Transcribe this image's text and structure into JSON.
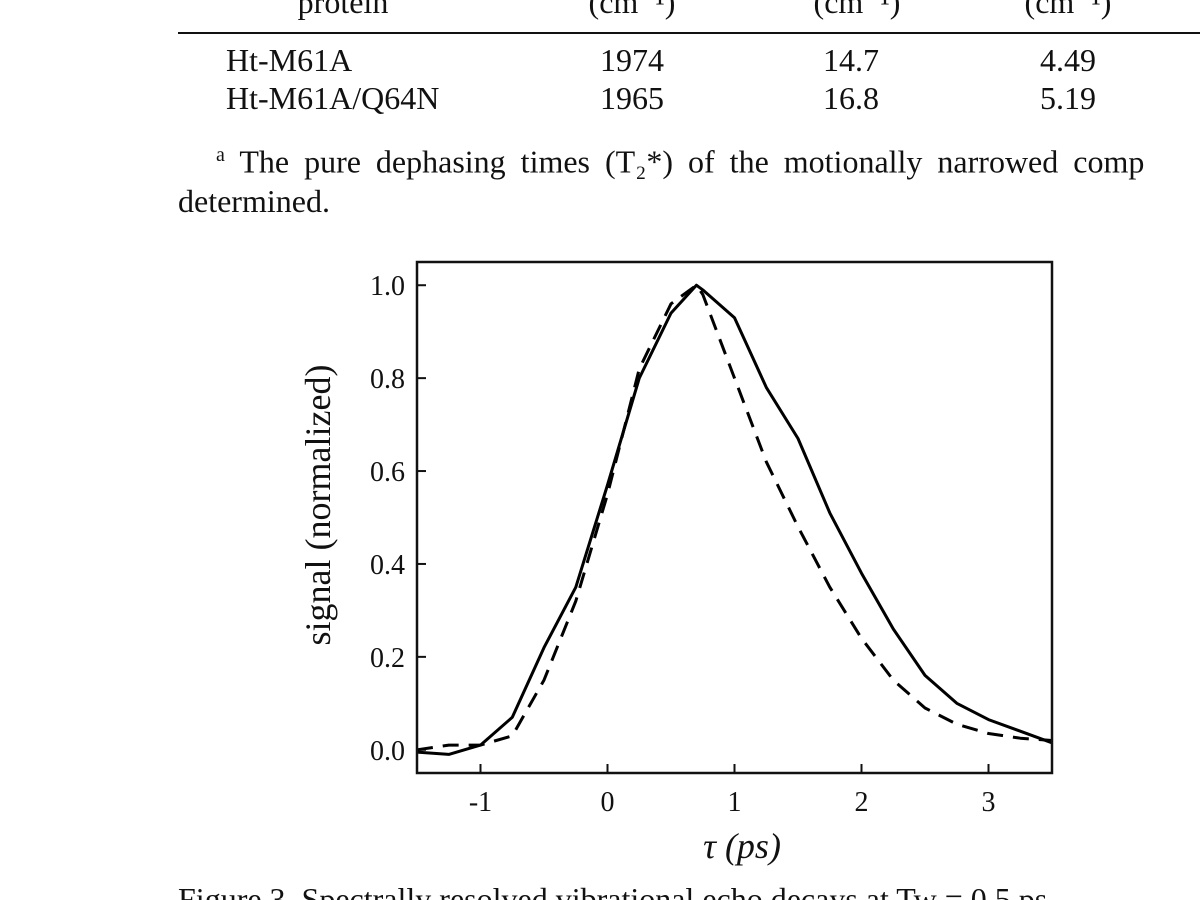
{
  "table": {
    "header": [
      "protein",
      "(cm⁻¹)",
      "(cm⁻¹)",
      "(cm⁻¹)"
    ],
    "rows": [
      [
        "Ht-M61A",
        "1974",
        "14.7",
        "4.49"
      ],
      [
        "Ht-M61A/Q64N",
        "1965",
        "16.8",
        "5.19"
      ]
    ]
  },
  "footnote": {
    "marker": "a",
    "lines": [
      "The pure dephasing times (T₂*) of the motionally narrowed comp",
      "determined."
    ]
  },
  "chart_data": {
    "type": "line",
    "x_label": "τ  (ps)",
    "y_label": "signal (normalized)",
    "x": [
      -1.5,
      -1.25,
      -1,
      -0.75,
      -0.5,
      -0.25,
      0,
      0.25,
      0.5,
      0.7,
      0.75,
      1,
      1.25,
      1.5,
      1.75,
      2,
      2.25,
      2.5,
      2.75,
      3,
      3.25,
      3.5
    ],
    "series": [
      {
        "color": "#000000",
        "dash": "solid",
        "values": [
          -0.005,
          -0.01,
          0.01,
          0.07,
          0.22,
          0.35,
          0.57,
          0.8,
          0.94,
          1.0,
          0.99,
          0.93,
          0.78,
          0.67,
          0.51,
          0.38,
          0.26,
          0.16,
          0.1,
          0.065,
          0.04,
          0.015
        ]
      },
      {
        "color": "#000000",
        "dash": "dashed",
        "values": [
          0.0,
          0.01,
          0.01,
          0.03,
          0.15,
          0.32,
          0.55,
          0.82,
          0.96,
          1.0,
          0.98,
          0.8,
          0.62,
          0.48,
          0.35,
          0.24,
          0.15,
          0.09,
          0.055,
          0.035,
          0.025,
          0.02
        ]
      }
    ],
    "xlim": [
      -1.5,
      3.5
    ],
    "ylim": [
      -0.05,
      1.05
    ],
    "xticks": [
      -1,
      0,
      1,
      2,
      3
    ],
    "yticks": [
      {
        "value": 0,
        "label": "0.0"
      },
      0.2,
      0.4,
      0.6,
      0.8,
      {
        "value": 1,
        "label": "1.0"
      }
    ]
  },
  "caption": "Figure 3.  Spectrally resolved vibrational echo decays at Tw = 0.5 ps"
}
